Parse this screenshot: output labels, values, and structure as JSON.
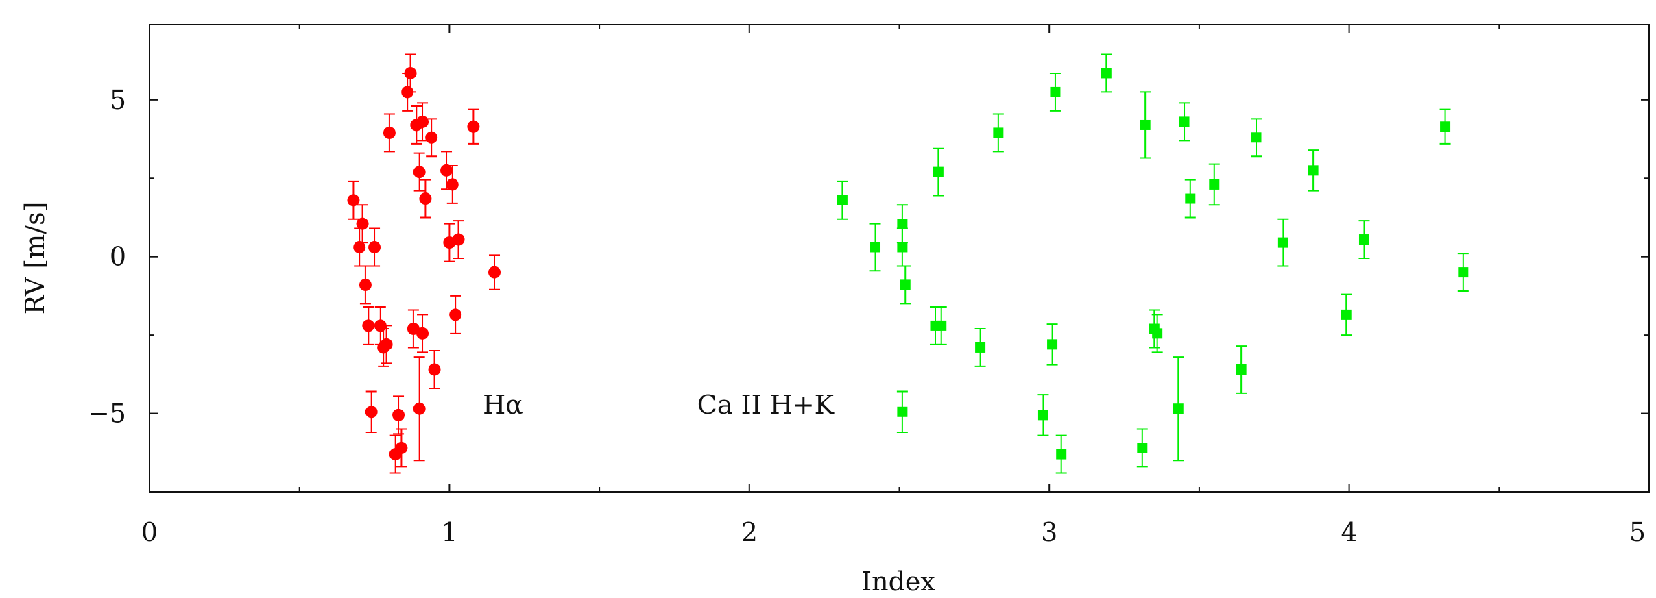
{
  "chart_data": {
    "type": "scatter",
    "xlabel": "Index",
    "ylabel": "RV [m/s]",
    "xlim": [
      0,
      5
    ],
    "ylim": [
      -7.5,
      7.4
    ],
    "x_ticks": [
      0,
      1,
      2,
      3,
      4,
      5
    ],
    "y_ticks": [
      -5,
      0,
      5
    ],
    "x_tick_labels": [
      "0",
      "1",
      "2",
      "3",
      "4",
      "5"
    ],
    "y_tick_labels": [
      "−5",
      "0",
      "5"
    ],
    "annotations": [
      {
        "text": "Hα",
        "x": 1.18,
        "y": -4.7
      },
      {
        "text": "Ca II H+K",
        "x": 2.0,
        "y": -4.7
      }
    ],
    "grid": false,
    "series": [
      {
        "marker": "circle",
        "color": "#ff0000",
        "points": [
          {
            "x": 0.68,
            "y": 1.8,
            "err": 0.6
          },
          {
            "x": 0.7,
            "y": 0.3,
            "err": 0.6
          },
          {
            "x": 0.71,
            "y": 1.05,
            "err": 0.6
          },
          {
            "x": 0.72,
            "y": -0.9,
            "err": 0.6
          },
          {
            "x": 0.73,
            "y": -2.2,
            "err": 0.6
          },
          {
            "x": 0.74,
            "y": -4.95,
            "err": 0.65
          },
          {
            "x": 0.75,
            "y": 0.3,
            "err": 0.6
          },
          {
            "x": 0.77,
            "y": -2.2,
            "err": 0.6
          },
          {
            "x": 0.78,
            "y": -2.9,
            "err": 0.6
          },
          {
            "x": 0.79,
            "y": -2.8,
            "err": 0.6
          },
          {
            "x": 0.8,
            "y": 3.95,
            "err": 0.6
          },
          {
            "x": 0.82,
            "y": -6.3,
            "err": 0.6
          },
          {
            "x": 0.83,
            "y": -5.05,
            "err": 0.6
          },
          {
            "x": 0.84,
            "y": -6.1,
            "err": 0.6
          },
          {
            "x": 0.86,
            "y": 5.25,
            "err": 0.6
          },
          {
            "x": 0.87,
            "y": 5.85,
            "err": 0.6
          },
          {
            "x": 0.88,
            "y": -2.3,
            "err": 0.6
          },
          {
            "x": 0.89,
            "y": 4.2,
            "err": 0.6
          },
          {
            "x": 0.9,
            "y": -4.85,
            "err": 1.65
          },
          {
            "x": 0.9,
            "y": 2.7,
            "err": 0.6
          },
          {
            "x": 0.91,
            "y": -2.45,
            "err": 0.6
          },
          {
            "x": 0.91,
            "y": 4.3,
            "err": 0.6
          },
          {
            "x": 0.92,
            "y": 1.85,
            "err": 0.6
          },
          {
            "x": 0.94,
            "y": 3.8,
            "err": 0.6
          },
          {
            "x": 0.95,
            "y": -3.6,
            "err": 0.6
          },
          {
            "x": 0.99,
            "y": 2.75,
            "err": 0.6
          },
          {
            "x": 1.0,
            "y": 0.45,
            "err": 0.6
          },
          {
            "x": 1.01,
            "y": 2.3,
            "err": 0.6
          },
          {
            "x": 1.02,
            "y": -1.85,
            "err": 0.6
          },
          {
            "x": 1.03,
            "y": 0.55,
            "err": 0.6
          },
          {
            "x": 1.08,
            "y": 4.15,
            "err": 0.55
          },
          {
            "x": 1.15,
            "y": -0.5,
            "err": 0.55
          }
        ]
      },
      {
        "marker": "square",
        "color": "#00ee00",
        "points": [
          {
            "x": 2.31,
            "y": 1.8,
            "err": 0.6
          },
          {
            "x": 2.42,
            "y": 0.3,
            "err": 0.75
          },
          {
            "x": 2.51,
            "y": 1.05,
            "err": 0.6
          },
          {
            "x": 2.51,
            "y": 0.3,
            "err": 0.6
          },
          {
            "x": 2.51,
            "y": -4.95,
            "err": 0.65
          },
          {
            "x": 2.52,
            "y": -0.9,
            "err": 0.6
          },
          {
            "x": 2.62,
            "y": -2.2,
            "err": 0.6
          },
          {
            "x": 2.63,
            "y": 2.7,
            "err": 0.75
          },
          {
            "x": 2.64,
            "y": -2.2,
            "err": 0.6
          },
          {
            "x": 2.77,
            "y": -2.9,
            "err": 0.6
          },
          {
            "x": 2.83,
            "y": 3.95,
            "err": 0.6
          },
          {
            "x": 2.98,
            "y": -5.05,
            "err": 0.65
          },
          {
            "x": 3.01,
            "y": -2.8,
            "err": 0.65
          },
          {
            "x": 3.02,
            "y": 5.25,
            "err": 0.6
          },
          {
            "x": 3.04,
            "y": -6.3,
            "err": 0.6
          },
          {
            "x": 3.19,
            "y": 5.85,
            "err": 0.6
          },
          {
            "x": 3.31,
            "y": -6.1,
            "err": 0.6
          },
          {
            "x": 3.32,
            "y": 4.2,
            "err": 1.05
          },
          {
            "x": 3.35,
            "y": -2.3,
            "err": 0.6
          },
          {
            "x": 3.36,
            "y": -2.45,
            "err": 0.6
          },
          {
            "x": 3.43,
            "y": -4.85,
            "err": 1.65
          },
          {
            "x": 3.45,
            "y": 4.3,
            "err": 0.6
          },
          {
            "x": 3.47,
            "y": 1.85,
            "err": 0.6
          },
          {
            "x": 3.55,
            "y": 2.3,
            "err": 0.65
          },
          {
            "x": 3.64,
            "y": -3.6,
            "err": 0.75
          },
          {
            "x": 3.69,
            "y": 3.8,
            "err": 0.6
          },
          {
            "x": 3.78,
            "y": 0.45,
            "err": 0.75
          },
          {
            "x": 3.88,
            "y": 2.75,
            "err": 0.65
          },
          {
            "x": 3.99,
            "y": -1.85,
            "err": 0.65
          },
          {
            "x": 4.05,
            "y": 0.55,
            "err": 0.6
          },
          {
            "x": 4.32,
            "y": 4.15,
            "err": 0.55
          },
          {
            "x": 4.38,
            "y": -0.5,
            "err": 0.6
          }
        ]
      }
    ]
  }
}
